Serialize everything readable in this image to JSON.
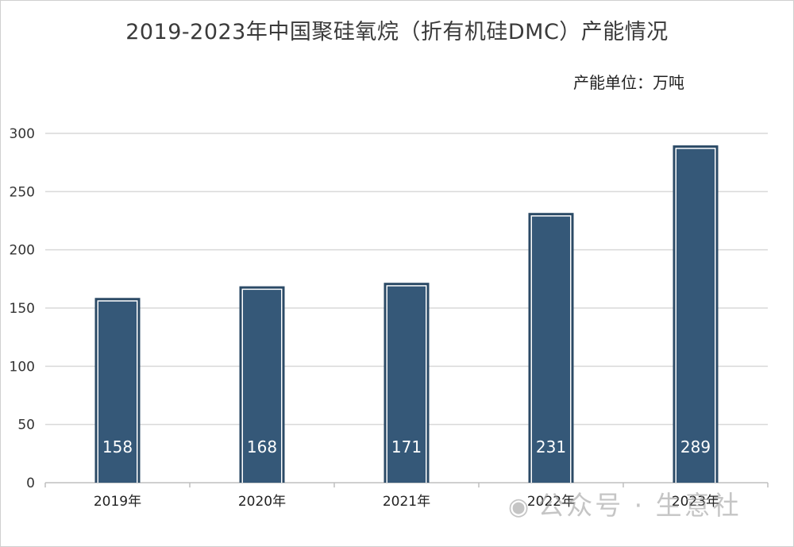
{
  "chart_data": {
    "type": "bar",
    "title": "2019-2023年中国聚硅氧烷（折有机硅DMC）产能情况",
    "unit_note": "产能单位：万吨",
    "categories": [
      "2019年",
      "2020年",
      "2021年",
      "2022年",
      "2023年"
    ],
    "values": [
      158,
      168,
      171,
      231,
      289
    ],
    "ylim": [
      0,
      300
    ],
    "yticks": [
      0,
      50,
      100,
      150,
      200,
      250,
      300
    ],
    "xlabel": "",
    "ylabel": "",
    "grid": true,
    "bar_color": "#355878"
  },
  "watermark": {
    "text": "公众号 · 生意社",
    "icon": "wechat-icon"
  }
}
